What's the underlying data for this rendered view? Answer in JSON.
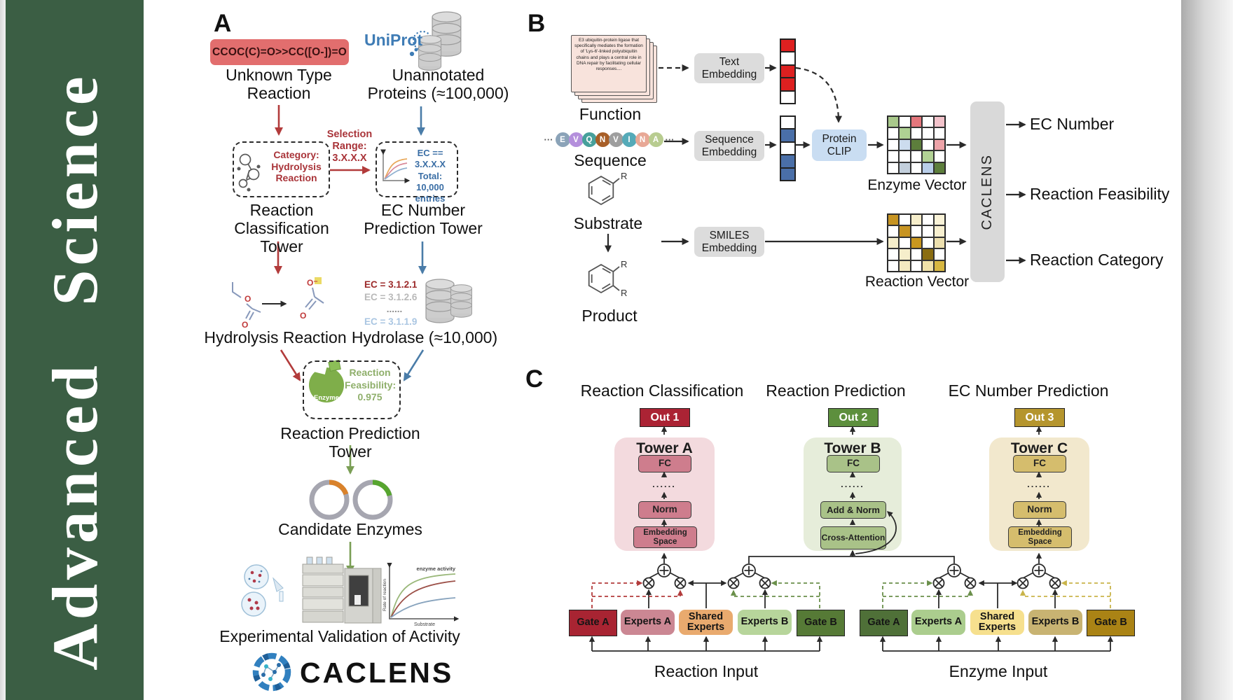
{
  "journal": {
    "word_top": "Science",
    "word_bottom": "Advanced",
    "bg": "#3b5e44"
  },
  "panel_a": {
    "label": "A",
    "smiles": "CCOC(C)=O>>CC([O-])=O",
    "smiles_bg": "#e26e6e",
    "unknown_reaction": "Unknown Type Reaction",
    "uniprot": "UniProt",
    "unannotated": "Unannotated Proteins (≈100,000)",
    "category": "Category: Hydrolysis Reaction",
    "selection": "Selection Range: 3.X.X.X",
    "ec_filter": [
      "EC == 3.X.X.X",
      "Total: 10,000",
      "entries"
    ],
    "classification_tower": "Reaction Classification Tower",
    "ec_tower": "EC Number Prediction Tower",
    "hydrolysis": "Hydrolysis Reaction",
    "ec_list": [
      {
        "text": "EC = 3.1.2.1",
        "color": "#9c2a2a"
      },
      {
        "text": "EC = 3.1.2.6",
        "color": "#b9b9b9"
      },
      {
        "text": "......",
        "color": "#8f8f8f"
      },
      {
        "text": "EC = 3.1.1.9",
        "color": "#aac6e2"
      }
    ],
    "hydrolase": "Hydrolase (≈10,000)",
    "enzyme_badge": "Enzyme",
    "feasibility": "Reaction Feasibility: 0.975",
    "prediction_tower": "Reaction Prediction Tower",
    "candidates": "Candidate Enzymes",
    "activity_plot": {
      "title": "enzyme activity",
      "ylabel": "Rate of reaction",
      "xlabel": "Substrate"
    },
    "validation": "Experimental Validation of Activity",
    "brand": "CACLENS",
    "arrow_red": "#b23b3b",
    "arrow_blue": "#4a7ca8",
    "arrow_green": "#7a9e55"
  },
  "panel_b": {
    "label": "B",
    "function_card": "E3 ubiquitin-protein ligase that specifically mediates the formation of 'Lys-6'-linked polyubiquitin chains and plays a central role in DNA repair by facilitating cellular responses....",
    "function": "Function",
    "ellipsis": "···",
    "residues": [
      {
        "t": "E",
        "c": "#8ba3b8"
      },
      {
        "t": "V",
        "c": "#b48fdc"
      },
      {
        "t": "Q",
        "c": "#47a09b"
      },
      {
        "t": "N",
        "c": "#a85f28"
      },
      {
        "t": "V",
        "c": "#9e9e9e"
      },
      {
        "t": "I",
        "c": "#55aab8"
      },
      {
        "t": "N",
        "c": "#e8a896"
      },
      {
        "t": "A",
        "c": "#b8cc90"
      }
    ],
    "sequence": "Sequence",
    "substrate": "Substrate",
    "product": "Product",
    "r_group": "R",
    "text_embedding": "Text Embedding",
    "sequence_embedding": "Sequence Embedding",
    "smiles_embedding": "SMILES Embedding",
    "protein_clip": "Protein CLIP",
    "text_vector": [
      "#dd2020",
      "#ffffff",
      "#dd2020",
      "#dd2020",
      "#ffffff"
    ],
    "sequence_vector": [
      "#ffffff",
      "#4a6fa8",
      "#ffffff",
      "#4a6fa8",
      "#4a6fa8"
    ],
    "enzyme_matrix": [
      [
        "#a9c98b",
        "#ffffff",
        "#e4767c",
        "#ffffff",
        "#f3c3cb"
      ],
      [
        "#ffffff",
        "#afd193",
        "#ffffff",
        "#ffffff",
        "#ffffff"
      ],
      [
        "#ffffff",
        "#ccdcee",
        "#5d7e3c",
        "#ffffff",
        "#eda3a8"
      ],
      [
        "#ffffff",
        "#ffffff",
        "#ffffff",
        "#b2d295",
        "#ffffff"
      ],
      [
        "#ffffff",
        "#c3cfdc",
        "#ffffff",
        "#b9cee9",
        "#5d7e3c"
      ]
    ],
    "reaction_matrix": [
      [
        "#c79422",
        "#ffffff",
        "#f6eecb",
        "#ffffff",
        "#faf3d8"
      ],
      [
        "#ffffff",
        "#c79422",
        "#ffffff",
        "#ffffff",
        "#f8f0d0"
      ],
      [
        "#f6eecb",
        "#ffffff",
        "#c9971f",
        "#ffffff",
        "#ecdfae"
      ],
      [
        "#ffffff",
        "#f6eecb",
        "#ffffff",
        "#8a6d12",
        "#ffffff"
      ],
      [
        "#ffffff",
        "#f4e9c0",
        "#ffffff",
        "#f0e2a8",
        "#d7b741"
      ]
    ],
    "enzyme_vector": "Enzyme Vector",
    "reaction_vector": "Reaction Vector",
    "caclens": "CACLENS",
    "outputs": [
      "EC Number",
      "Reaction Feasibility",
      "Reaction Category"
    ]
  },
  "panel_c": {
    "label": "C",
    "headers": [
      "Reaction Classification",
      "Reaction Prediction",
      "EC Number Prediction"
    ],
    "outs": [
      {
        "label": "Out 1",
        "bg": "#ab2334"
      },
      {
        "label": "Out 2",
        "bg": "#5d8f3d"
      },
      {
        "label": "Out 3",
        "bg": "#b5952d"
      }
    ],
    "dots": "......",
    "towers": [
      {
        "name": "Tower A",
        "bg": "#f3dade",
        "box_bg": "#ce7d8d",
        "fc": "FC",
        "mid": "Norm",
        "bottom": "Embedding Space"
      },
      {
        "name": "Tower B",
        "bg": "#e6edda",
        "box_bg": "#a9c288",
        "fc": "FC",
        "mid": "Add & Norm",
        "bottom": "Cross-Attention"
      },
      {
        "name": "Tower C",
        "bg": "#f2e8cd",
        "box_bg": "#d5bd6d",
        "fc": "FC",
        "mid": "Norm",
        "bottom": "Embedding Space"
      }
    ],
    "moe_left": {
      "input": "Reaction Input",
      "boxes": [
        {
          "label": "Gate A",
          "bg": "#a82432"
        },
        {
          "label": "Experts A",
          "bg": "#cb8793"
        },
        {
          "label": "Shared Experts",
          "bg": "#e9aa6e"
        },
        {
          "label": "Experts B",
          "bg": "#b7d59b"
        },
        {
          "label": "Gate B",
          "bg": "#567a36"
        }
      ]
    },
    "moe_right": {
      "input": "Enzyme Input",
      "boxes": [
        {
          "label": "Gate A",
          "bg": "#4f7038"
        },
        {
          "label": "Experts A",
          "bg": "#abcd8e"
        },
        {
          "label": "Shared Experts",
          "bg": "#f6e08e"
        },
        {
          "label": "Experts B",
          "bg": "#c8b372"
        },
        {
          "label": "Gate B",
          "bg": "#aa8315"
        }
      ]
    }
  }
}
